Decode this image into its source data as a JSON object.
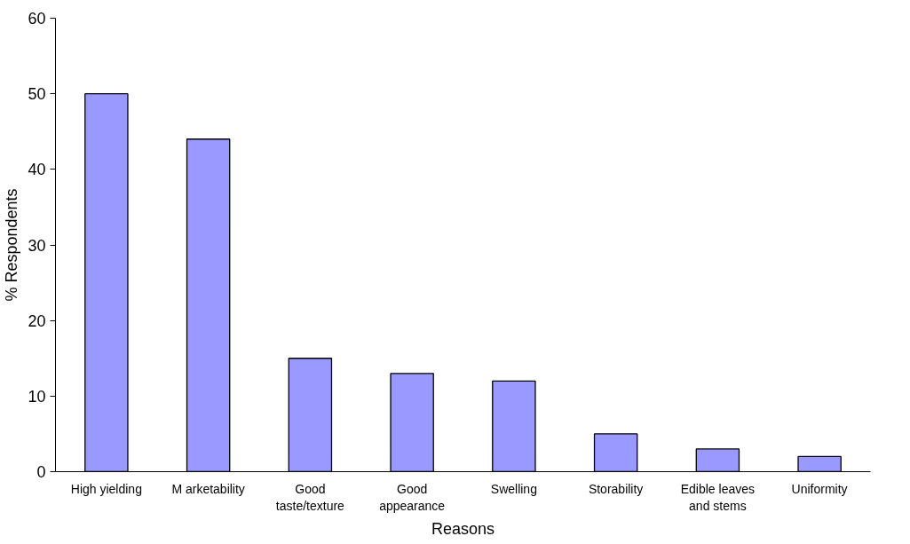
{
  "chart_data": {
    "type": "bar",
    "xlabel": "Reasons",
    "ylabel": "% Respondents",
    "categories": [
      "High yielding",
      "M arketability",
      "Good\ntaste/texture",
      "Good\nappearance",
      "Swelling",
      "Storability",
      "Edible leaves\nand stems",
      "Uniformity"
    ],
    "values": [
      50,
      44,
      15,
      13,
      12,
      5,
      3,
      2
    ],
    "color": "#9999ff",
    "ylim": [
      0,
      60
    ],
    "yticks": [
      0,
      10,
      20,
      30,
      40,
      50,
      60
    ],
    "grid": false
  }
}
